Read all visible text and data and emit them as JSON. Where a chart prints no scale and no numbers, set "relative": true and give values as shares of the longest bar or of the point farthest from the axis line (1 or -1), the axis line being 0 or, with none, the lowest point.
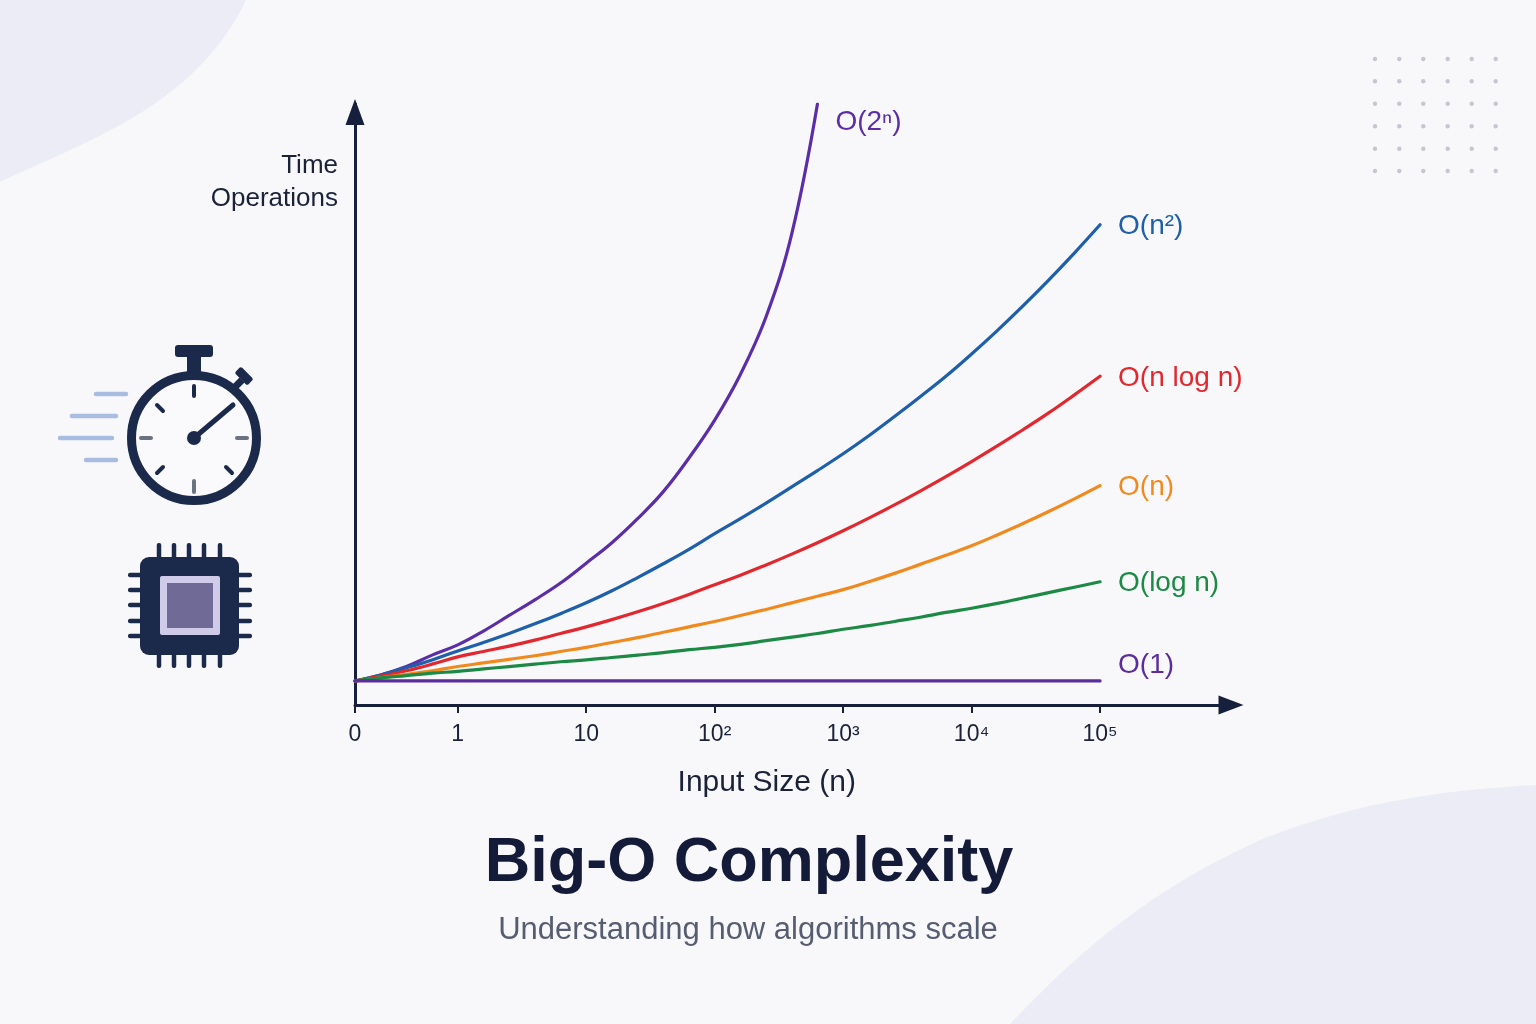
{
  "chart_data": {
    "type": "line",
    "title": "Big-O Complexity",
    "subtitle": "Understanding how algorithms scale",
    "xlabel": "Input Size (n)",
    "ylabel": "Time\nOperations",
    "categories": [
      "0",
      null,
      null,
      null,
      "1",
      null,
      null,
      null,
      null,
      "10",
      null,
      null,
      null,
      null,
      "10²",
      null,
      null,
      null,
      null,
      "10³",
      null,
      null,
      null,
      null,
      "10⁴",
      null,
      null,
      null,
      null,
      "10⁵"
    ],
    "relative": true,
    "marker": "none",
    "line_style": "solid",
    "series": [
      {
        "name": "O(2ⁿ)",
        "color": "#5b2ea6",
        "values": [
          0.04,
          0.05,
          0.064,
          0.083,
          0.1,
          0.123,
          0.149,
          0.175,
          0.203,
          0.236,
          0.27,
          0.31,
          0.355,
          0.411,
          0.474,
          0.55,
          0.646,
          0.784,
          1.0,
          null,
          null,
          null,
          null,
          null,
          null,
          null,
          null,
          null,
          null,
          null
        ]
      },
      {
        "name": "O(n²)",
        "color": "#1d5fa8",
        "values": [
          0.04,
          0.05,
          0.062,
          0.075,
          0.09,
          0.104,
          0.119,
          0.135,
          0.152,
          0.17,
          0.19,
          0.212,
          0.235,
          0.259,
          0.285,
          0.31,
          0.336,
          0.363,
          0.39,
          0.418,
          0.448,
          0.48,
          0.513,
          0.547,
          0.584,
          0.623,
          0.664,
          0.707,
          0.752,
          0.799
        ]
      },
      {
        "name": "O(n log n)",
        "color": "#e0282e",
        "values": [
          0.04,
          0.048,
          0.057,
          0.068,
          0.08,
          0.089,
          0.098,
          0.108,
          0.119,
          0.13,
          0.142,
          0.155,
          0.169,
          0.184,
          0.2,
          0.216,
          0.233,
          0.251,
          0.27,
          0.29,
          0.311,
          0.333,
          0.356,
          0.38,
          0.405,
          0.431,
          0.458,
          0.486,
          0.516,
          0.547
        ]
      },
      {
        "name": "O(n)",
        "color": "#f08a1e",
        "values": [
          0.04,
          0.045,
          0.051,
          0.057,
          0.064,
          0.07,
          0.076,
          0.082,
          0.089,
          0.096,
          0.104,
          0.112,
          0.121,
          0.13,
          0.139,
          0.149,
          0.159,
          0.17,
          0.181,
          0.192,
          0.205,
          0.219,
          0.234,
          0.249,
          0.265,
          0.283,
          0.302,
          0.322,
          0.343,
          0.365
        ]
      },
      {
        "name": "O(log n)",
        "color": "#1c8a45",
        "values": [
          0.04,
          0.045,
          0.049,
          0.053,
          0.056,
          0.06,
          0.064,
          0.068,
          0.072,
          0.075,
          0.079,
          0.083,
          0.087,
          0.092,
          0.096,
          0.101,
          0.107,
          0.113,
          0.119,
          0.126,
          0.132,
          0.139,
          0.146,
          0.154,
          0.161,
          0.169,
          0.178,
          0.187,
          0.196,
          0.205
        ]
      },
      {
        "name": "O(1)",
        "color": "#5b2c9c",
        "values": [
          0.04,
          0.04,
          0.04,
          0.04,
          0.04,
          0.04,
          0.04,
          0.04,
          0.04,
          0.04,
          0.04,
          0.04,
          0.04,
          0.04,
          0.04,
          0.04,
          0.04,
          0.04,
          0.04,
          0.04,
          0.04,
          0.04,
          0.04,
          0.04,
          0.04,
          0.04,
          0.04,
          0.04,
          0.04,
          0.04
        ]
      }
    ]
  }
}
